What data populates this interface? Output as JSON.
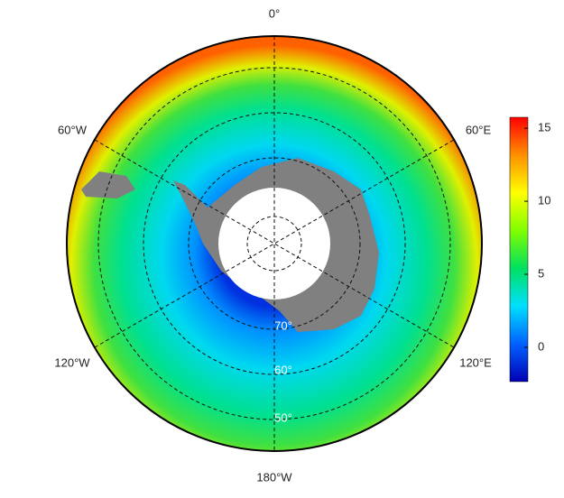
{
  "map": {
    "longitude_labels": [
      "0°",
      "60°E",
      "120°E",
      "180°W",
      "120°W",
      "60°W"
    ],
    "latitude_labels": [
      "70°",
      "60°",
      "50°"
    ],
    "colorbar": {
      "lim": [
        -2.35,
        15.75
      ],
      "ticks": [
        0,
        5,
        10,
        15
      ],
      "colors": [
        "#0000b4",
        "#0060ff",
        "#00e0ff",
        "#00e060",
        "#80ff00",
        "#ffff00",
        "#ff9000",
        "#ff0000"
      ]
    }
  }
}
